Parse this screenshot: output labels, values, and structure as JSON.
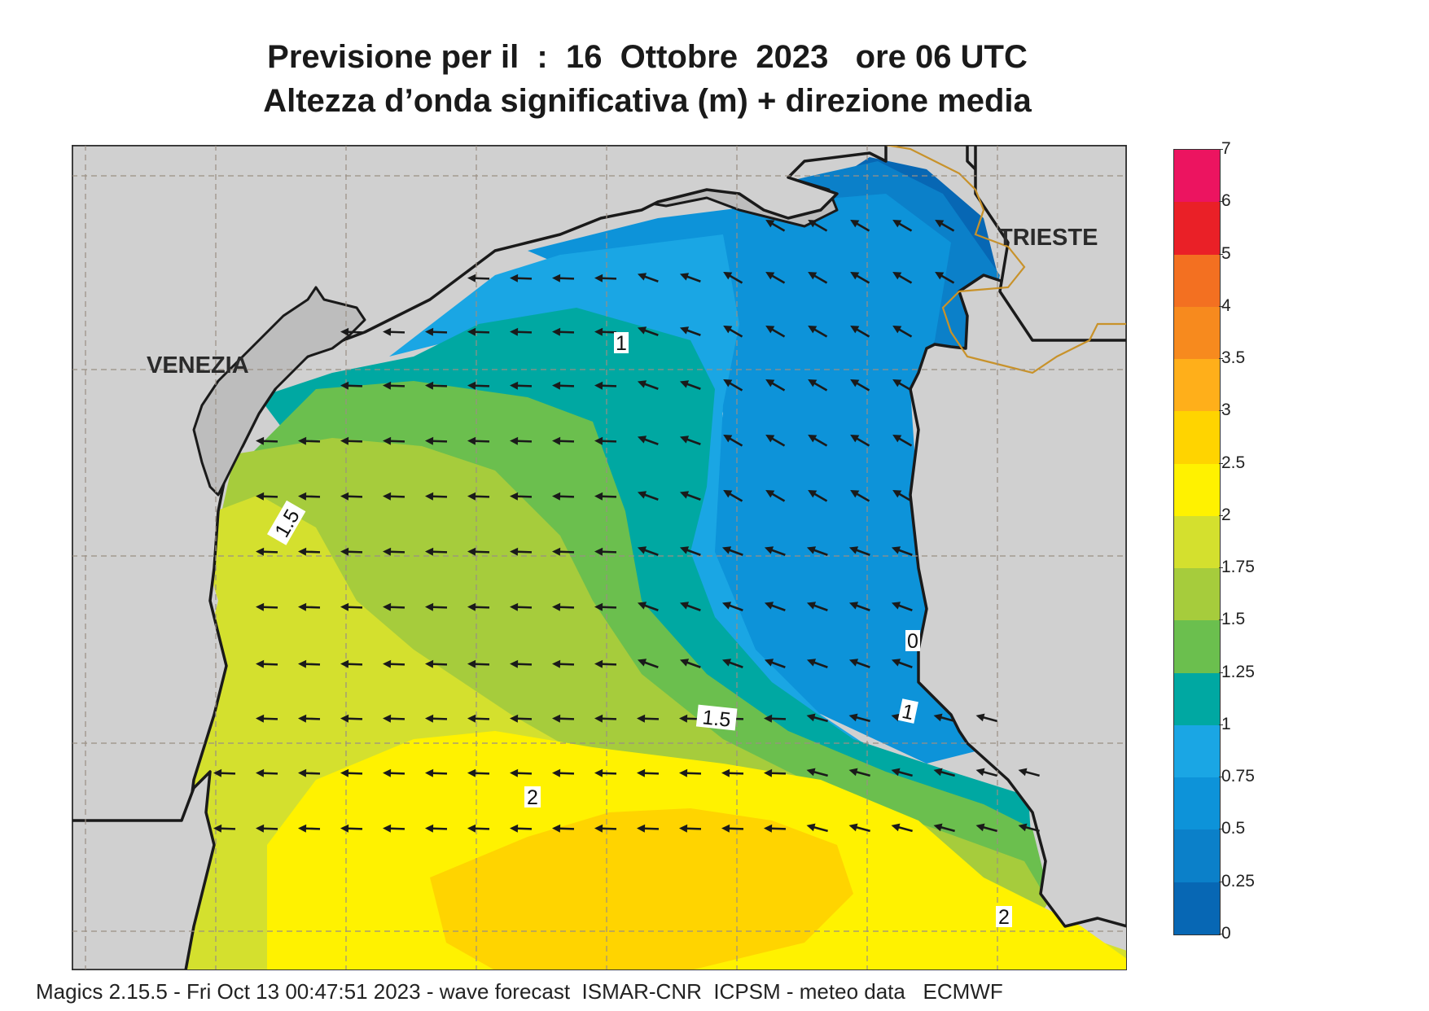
{
  "title_line1": "Previsione per il  :  16  Ottobre  2023   ore 06 UTC",
  "title_line2": "Altezza d’onda significativa (m) + direzione media",
  "places": {
    "venezia": "VENEZIA",
    "trieste": "TRIESTE"
  },
  "contour_labels": [
    "1",
    "1.5",
    "1.5",
    "1",
    "2",
    "2",
    "0"
  ],
  "legend": {
    "ticks": [
      "0",
      "0.25",
      "0.5",
      "0.75",
      "1",
      "1.25",
      "1.5",
      "1.75",
      "2",
      "2.5",
      "3",
      "3.5",
      "4",
      "5",
      "6",
      "7"
    ],
    "colors": [
      "#0767b4",
      "#0b80c9",
      "#0d93d9",
      "#1aa6e4",
      "#00a8a2",
      "#6bbf4e",
      "#a6cc3c",
      "#d4e02e",
      "#fff200",
      "#ffd400",
      "#ffaf1a",
      "#f78a1e",
      "#f37021",
      "#ea2027",
      "#ec1460"
    ]
  },
  "map_colors": {
    "land": "#d0d0d0",
    "coast": "#1a1a1a",
    "border": "#c8922a",
    "grid": "#9a8f84",
    "arrow": "#1a1a1a"
  },
  "footer": "Magics 2.15.5 - Fri Oct 13 00:47:51 2023 - wave forecast  ISMAR-CNR  ICPSM - meteo data   ECMWF"
}
